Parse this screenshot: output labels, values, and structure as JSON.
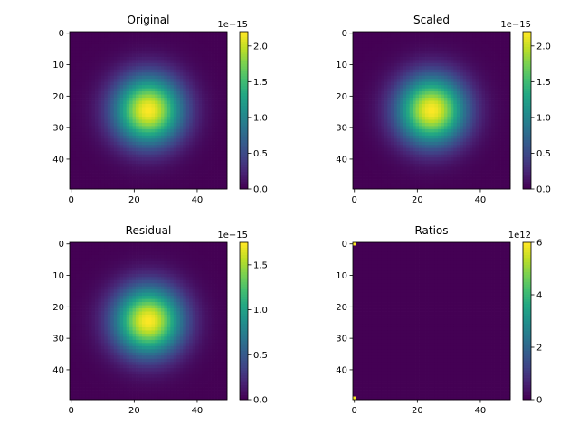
{
  "chart_data": [
    {
      "type": "heatmap",
      "title": "Original",
      "grid_size": [
        50,
        50
      ],
      "peak_position": [
        24.5,
        24.5
      ],
      "spread": 7.5,
      "vmin": 0.0,
      "vmax": 2.2,
      "colormap": "viridis",
      "x_ticks": [
        "0",
        "20",
        "40"
      ],
      "y_ticks": [
        "0",
        "10",
        "20",
        "30",
        "40"
      ],
      "colorbar_ticks": [
        "0.0",
        "0.5",
        "1.0",
        "1.5",
        "2.0"
      ],
      "colorbar_tick_values": [
        0.0,
        0.5,
        1.0,
        1.5,
        2.0
      ],
      "colorbar_offset": "1e−15"
    },
    {
      "type": "heatmap",
      "title": "Scaled",
      "grid_size": [
        50,
        50
      ],
      "peak_position": [
        24.5,
        24.5
      ],
      "spread": 7.5,
      "vmin": 0.0,
      "vmax": 2.2,
      "colormap": "viridis",
      "x_ticks": [
        "0",
        "20",
        "40"
      ],
      "y_ticks": [
        "0",
        "10",
        "20",
        "30",
        "40"
      ],
      "colorbar_ticks": [
        "0.0",
        "0.5",
        "1.0",
        "1.5",
        "2.0"
      ],
      "colorbar_tick_values": [
        0.0,
        0.5,
        1.0,
        1.5,
        2.0
      ],
      "colorbar_offset": "1e−15"
    },
    {
      "type": "heatmap",
      "title": "Residual",
      "grid_size": [
        50,
        50
      ],
      "peak_position": [
        24.5,
        24.5
      ],
      "spread": 7.5,
      "vmin": 0.0,
      "vmax": 1.75,
      "colormap": "viridis",
      "x_ticks": [
        "0",
        "20",
        "40"
      ],
      "y_ticks": [
        "0",
        "10",
        "20",
        "30",
        "40"
      ],
      "colorbar_ticks": [
        "0.0",
        "0.5",
        "1.0",
        "1.5"
      ],
      "colorbar_tick_values": [
        0.0,
        0.5,
        1.0,
        1.5
      ],
      "colorbar_offset": "1e−15"
    },
    {
      "type": "heatmap",
      "title": "Ratios",
      "grid_size": [
        50,
        50
      ],
      "uniform_value": 0,
      "hot_cells": [
        [
          0,
          0,
          6.0
        ],
        [
          49,
          0,
          6.0
        ]
      ],
      "vmin": 0,
      "vmax": 6.0,
      "colormap": "viridis",
      "x_ticks": [
        "0",
        "20",
        "40"
      ],
      "y_ticks": [
        "0",
        "10",
        "20",
        "30",
        "40"
      ],
      "colorbar_ticks": [
        "0",
        "2",
        "4",
        "6"
      ],
      "colorbar_tick_values": [
        0,
        2,
        4,
        6
      ],
      "colorbar_offset": "1e12"
    }
  ]
}
